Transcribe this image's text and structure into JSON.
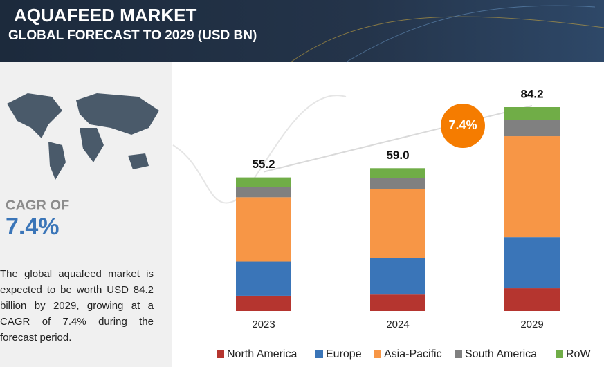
{
  "header": {
    "title": "AQUAFEED MARKET",
    "subtitle": "GLOBAL FORECAST TO 2029 (USD BN)"
  },
  "sidebar": {
    "cagr_label": "CAGR OF",
    "cagr_value": "7.4%",
    "description": "The global aquafeed market is expected to be worth USD 84.2 billion by 2029, growing at a CAGR of 7.4% during the forecast period."
  },
  "chart_data": {
    "type": "stacked_bar",
    "categories": [
      "2023",
      "2024",
      "2029"
    ],
    "series": [
      {
        "name": "North America",
        "color": "#b5352f",
        "values": [
          6.3,
          6.8,
          9.4
        ]
      },
      {
        "name": "Europe",
        "color": "#3a75b8",
        "values": [
          14.1,
          15.0,
          21.1
        ]
      },
      {
        "name": "Asia-Pacific",
        "color": "#f79646",
        "values": [
          26.6,
          28.5,
          41.7
        ]
      },
      {
        "name": "South America",
        "color": "#808080",
        "values": [
          4.2,
          4.6,
          6.6
        ]
      },
      {
        "name": "RoW",
        "color": "#70ad47",
        "values": [
          4.0,
          4.1,
          5.4
        ]
      }
    ],
    "totals": [
      55.2,
      59.0,
      84.2
    ],
    "total_labels": [
      "55.2",
      "59.0",
      "84.2"
    ],
    "annotation": "7.4%",
    "legend": "bottom"
  }
}
